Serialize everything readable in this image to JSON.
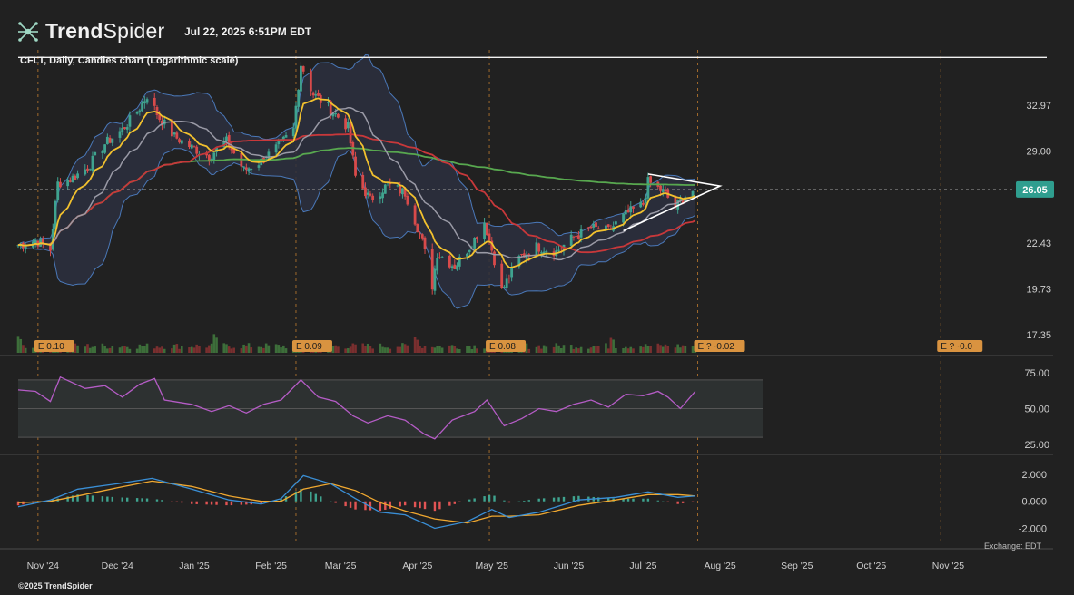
{
  "header": {
    "brand_bold": "Trend",
    "brand_light": "Spider",
    "timestamp": "Jul 22, 2025 6:51PM EDT",
    "chart_title": "CFLT, Daily, Candles chart (Logarithmic scale)"
  },
  "footer": {
    "copyright": "©2025 TrendSpider",
    "exchange": "Exchange: EDT"
  },
  "colors": {
    "background": "#212121",
    "candle_up": "#3fa38f",
    "candle_down": "#d84a4a",
    "ema_fast": "#f2c12e",
    "sma_mid": "#9a9aa6",
    "sma_50": "#c8383a",
    "sma_200": "#58a84f",
    "bollinger": "#4a78b8",
    "rsi": "#b55cc6",
    "macd_line": "#3a8fd6",
    "signal_line": "#f0a830",
    "price_badge": "#2f9e8f"
  },
  "chart_data": [
    {
      "type": "candlestick",
      "title": "CFLT, Daily, Candles chart (Logarithmic scale)",
      "scale": "log",
      "ylim": [
        17.35,
        38.5
      ],
      "yticks": [
        "32.97",
        "29.00",
        "22.43",
        "19.73",
        "17.35"
      ],
      "current_price": "26.05",
      "current_price_value": 26.05,
      "xticks": [
        "Nov '24",
        "Dec '24",
        "Jan '25",
        "Feb '25",
        "Mar '25",
        "Apr '25",
        "May '25",
        "Jun '25",
        "Jul '25",
        "Aug '25",
        "Sep '25",
        "Oct '25",
        "Nov '25"
      ],
      "x_range": [
        "2024-10-22",
        "2025-11-25"
      ],
      "last_date": "2025-07-22",
      "resistance_level": 37.7,
      "close_path": [
        [
          "2024-10-22",
          22.3
        ],
        [
          "2024-10-29",
          22.6
        ],
        [
          "2024-11-04",
          22.0
        ],
        [
          "2024-11-07",
          26.5
        ],
        [
          "2024-11-12",
          26.8
        ],
        [
          "2024-11-19",
          27.7
        ],
        [
          "2024-11-26",
          29.6
        ],
        [
          "2024-12-03",
          30.8
        ],
        [
          "2024-12-09",
          32.4
        ],
        [
          "2024-12-13",
          33.9
        ],
        [
          "2024-12-18",
          31.8
        ],
        [
          "2024-12-24",
          30.2
        ],
        [
          "2024-12-31",
          29.3
        ],
        [
          "2025-01-07",
          28.6
        ],
        [
          "2025-01-14",
          29.8
        ],
        [
          "2025-01-21",
          27.5
        ],
        [
          "2025-01-28",
          28.2
        ],
        [
          "2025-02-04",
          29.4
        ],
        [
          "2025-02-10",
          30.8
        ],
        [
          "2025-02-13",
          37.0
        ],
        [
          "2025-02-18",
          34.0
        ],
        [
          "2025-02-25",
          32.6
        ],
        [
          "2025-03-04",
          31.0
        ],
        [
          "2025-03-07",
          27.0
        ],
        [
          "2025-03-13",
          25.3
        ],
        [
          "2025-03-20",
          26.4
        ],
        [
          "2025-03-27",
          25.8
        ],
        [
          "2025-04-03",
          22.5
        ],
        [
          "2025-04-07",
          19.9
        ],
        [
          "2025-04-09",
          21.8
        ],
        [
          "2025-04-16",
          21.0
        ],
        [
          "2025-04-23",
          22.4
        ],
        [
          "2025-04-28",
          23.8
        ],
        [
          "2025-05-01",
          22.0
        ],
        [
          "2025-05-05",
          19.6
        ],
        [
          "2025-05-12",
          21.5
        ],
        [
          "2025-05-19",
          22.2
        ],
        [
          "2025-05-27",
          21.9
        ],
        [
          "2025-06-03",
          22.8
        ],
        [
          "2025-06-10",
          23.4
        ],
        [
          "2025-06-17",
          23.2
        ],
        [
          "2025-06-24",
          24.3
        ],
        [
          "2025-07-01",
          25.0
        ],
        [
          "2025-07-03",
          26.6
        ],
        [
          "2025-07-09",
          25.9
        ],
        [
          "2025-07-14",
          24.8
        ],
        [
          "2025-07-18",
          25.6
        ],
        [
          "2025-07-22",
          26.05
        ]
      ],
      "earnings_labels": [
        {
          "date": "2024-10-30",
          "label": "E 0.10"
        },
        {
          "date": "2025-02-11",
          "label": "E 0.09"
        },
        {
          "date": "2025-04-30",
          "label": "E 0.08"
        },
        {
          "date": "2025-07-23",
          "label": "E ?~0.02"
        },
        {
          "date": "2025-10-29",
          "label": "E ?~0.0"
        }
      ]
    },
    {
      "type": "line",
      "name": "RSI",
      "ylim": [
        20,
        80
      ],
      "yticks": [
        "75.00",
        "50.00",
        "25.00"
      ],
      "band": [
        30,
        70
      ],
      "points": [
        [
          "2024-10-22",
          63
        ],
        [
          "2024-10-29",
          62
        ],
        [
          "2024-11-04",
          55
        ],
        [
          "2024-11-08",
          72
        ],
        [
          "2024-11-18",
          64
        ],
        [
          "2024-11-26",
          66
        ],
        [
          "2024-12-03",
          58
        ],
        [
          "2024-12-10",
          67
        ],
        [
          "2024-12-16",
          71
        ],
        [
          "2024-12-20",
          56
        ],
        [
          "2024-12-31",
          53
        ],
        [
          "2025-01-08",
          48
        ],
        [
          "2025-01-15",
          52
        ],
        [
          "2025-01-22",
          47
        ],
        [
          "2025-01-29",
          53
        ],
        [
          "2025-02-05",
          56
        ],
        [
          "2025-02-13",
          70
        ],
        [
          "2025-02-20",
          58
        ],
        [
          "2025-02-27",
          55
        ],
        [
          "2025-03-06",
          45
        ],
        [
          "2025-03-12",
          40
        ],
        [
          "2025-03-20",
          45
        ],
        [
          "2025-03-27",
          42
        ],
        [
          "2025-04-04",
          32
        ],
        [
          "2025-04-08",
          29
        ],
        [
          "2025-04-15",
          42
        ],
        [
          "2025-04-24",
          48
        ],
        [
          "2025-04-29",
          56
        ],
        [
          "2025-05-06",
          38
        ],
        [
          "2025-05-13",
          43
        ],
        [
          "2025-05-20",
          50
        ],
        [
          "2025-05-27",
          48
        ],
        [
          "2025-06-03",
          53
        ],
        [
          "2025-06-10",
          56
        ],
        [
          "2025-06-17",
          51
        ],
        [
          "2025-06-24",
          60
        ],
        [
          "2025-07-01",
          59
        ],
        [
          "2025-07-07",
          62
        ],
        [
          "2025-07-11",
          58
        ],
        [
          "2025-07-16",
          50
        ],
        [
          "2025-07-22",
          62
        ]
      ]
    },
    {
      "type": "macd",
      "ylim": [
        -2.5,
        3.0
      ],
      "yticks": [
        "2.000",
        "0.000",
        "-2.000"
      ],
      "macd": [
        [
          "2024-10-22",
          -0.4
        ],
        [
          "2024-11-04",
          0.1
        ],
        [
          "2024-11-15",
          0.9
        ],
        [
          "2024-12-01",
          1.3
        ],
        [
          "2024-12-15",
          1.7
        ],
        [
          "2024-12-31",
          0.9
        ],
        [
          "2025-01-15",
          0.1
        ],
        [
          "2025-01-28",
          -0.2
        ],
        [
          "2025-02-05",
          0.2
        ],
        [
          "2025-02-14",
          1.9
        ],
        [
          "2025-02-25",
          1.3
        ],
        [
          "2025-03-07",
          0.2
        ],
        [
          "2025-03-17",
          -0.8
        ],
        [
          "2025-03-27",
          -1.0
        ],
        [
          "2025-04-08",
          -2.0
        ],
        [
          "2025-04-21",
          -1.5
        ],
        [
          "2025-05-01",
          -0.6
        ],
        [
          "2025-05-08",
          -1.2
        ],
        [
          "2025-05-20",
          -0.8
        ],
        [
          "2025-06-05",
          0.1
        ],
        [
          "2025-06-20",
          0.3
        ],
        [
          "2025-07-03",
          0.7
        ],
        [
          "2025-07-15",
          0.3
        ],
        [
          "2025-07-22",
          0.4
        ]
      ],
      "signal": [
        [
          "2024-10-22",
          -0.1
        ],
        [
          "2024-11-04",
          0.0
        ],
        [
          "2024-11-15",
          0.4
        ],
        [
          "2024-12-01",
          1.0
        ],
        [
          "2024-12-15",
          1.5
        ],
        [
          "2024-12-31",
          1.1
        ],
        [
          "2025-01-15",
          0.4
        ],
        [
          "2025-01-28",
          0.0
        ],
        [
          "2025-02-05",
          0.0
        ],
        [
          "2025-02-14",
          0.9
        ],
        [
          "2025-02-25",
          1.3
        ],
        [
          "2025-03-07",
          0.8
        ],
        [
          "2025-03-17",
          -0.1
        ],
        [
          "2025-03-27",
          -0.7
        ],
        [
          "2025-04-08",
          -1.3
        ],
        [
          "2025-04-21",
          -1.6
        ],
        [
          "2025-05-01",
          -1.1
        ],
        [
          "2025-05-08",
          -1.1
        ],
        [
          "2025-05-20",
          -1.0
        ],
        [
          "2025-06-05",
          -0.3
        ],
        [
          "2025-06-20",
          0.1
        ],
        [
          "2025-07-03",
          0.5
        ],
        [
          "2025-07-15",
          0.5
        ],
        [
          "2025-07-22",
          0.4
        ]
      ]
    }
  ]
}
